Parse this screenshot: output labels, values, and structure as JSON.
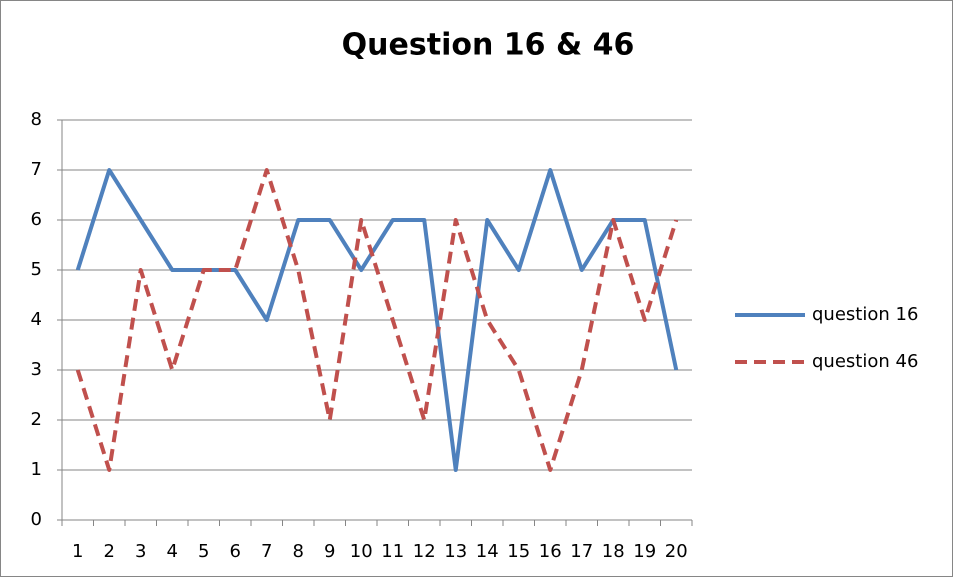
{
  "chart_data": {
    "type": "line",
    "title": "Question 16 & 46",
    "categories": [
      1,
      2,
      3,
      4,
      5,
      6,
      7,
      8,
      9,
      10,
      11,
      12,
      13,
      14,
      15,
      16,
      17,
      18,
      19,
      20
    ],
    "series": [
      {
        "name": "question 16",
        "color": "#4f81bd",
        "dash": false,
        "values": [
          5,
          7,
          6,
          5,
          5,
          5,
          4,
          6,
          6,
          5,
          6,
          6,
          1,
          6,
          5,
          7,
          5,
          6,
          6,
          3
        ]
      },
      {
        "name": "question 46",
        "color": "#c0504d",
        "dash": true,
        "values": [
          3,
          1,
          5,
          3,
          5,
          5,
          7,
          5,
          2,
          6,
          4,
          2,
          6,
          4,
          3,
          1,
          3,
          6,
          4,
          6
        ]
      }
    ],
    "ylim": [
      0,
      8
    ],
    "yticks": [
      0,
      1,
      2,
      3,
      4,
      5,
      6,
      7,
      8
    ],
    "grid": true,
    "legend": "right"
  }
}
